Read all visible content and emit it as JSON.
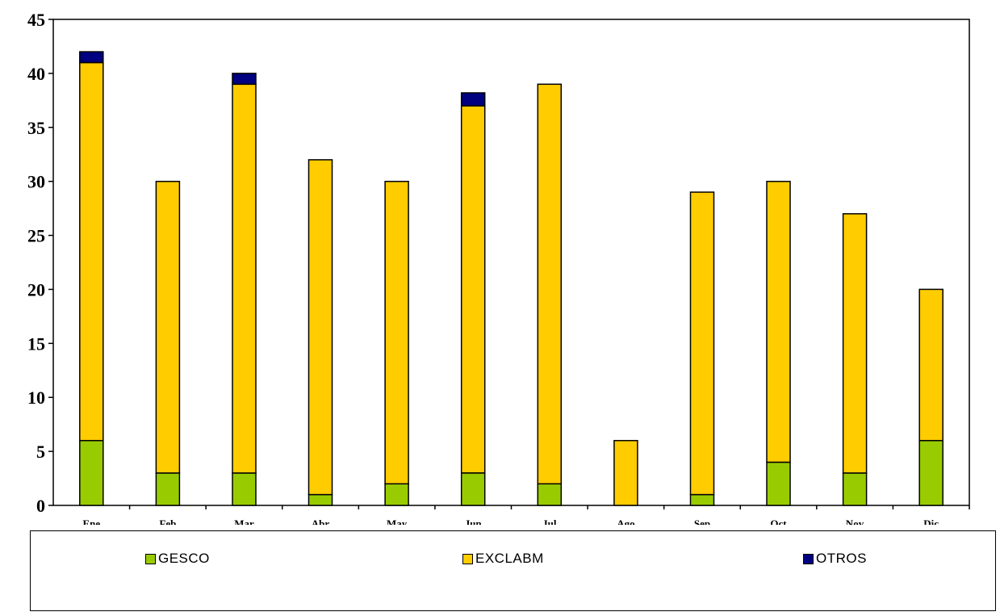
{
  "chart_data": {
    "type": "bar",
    "stacked": true,
    "categories": [
      "Ene",
      "Feb",
      "Mar",
      "Abr",
      "May",
      "Jun",
      "Jul",
      "Ago",
      "Sep",
      "Oct",
      "Nov",
      "Dic"
    ],
    "series": [
      {
        "name": "GESCO",
        "color": "#99CC00",
        "values": [
          6,
          3,
          3,
          1,
          2,
          3,
          2,
          0,
          1,
          4,
          3,
          6
        ]
      },
      {
        "name": "EXCLABM",
        "color": "#FFCC00",
        "values": [
          35,
          27,
          36,
          31,
          28,
          34,
          37,
          6,
          28,
          26,
          24,
          14
        ]
      },
      {
        "name": "OTROS",
        "color": "#000080",
        "values": [
          1,
          0,
          1,
          0,
          0,
          1.2,
          0,
          0,
          0,
          0,
          0,
          0
        ]
      }
    ],
    "yticks": [
      "0",
      "5",
      "10",
      "15",
      "20",
      "25",
      "30",
      "35",
      "40",
      "45"
    ],
    "ylim": [
      0,
      45
    ],
    "grid": false,
    "legend_position": "bottom"
  }
}
